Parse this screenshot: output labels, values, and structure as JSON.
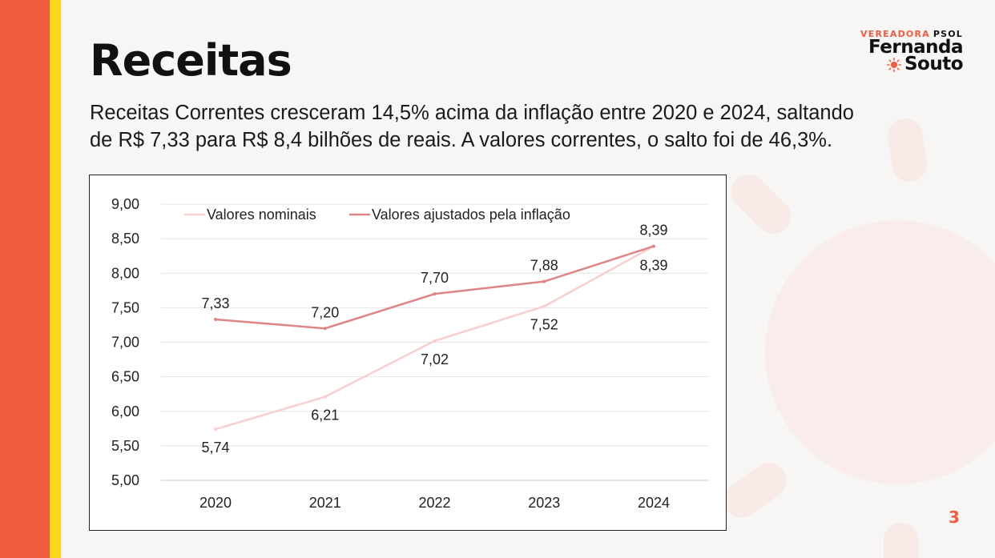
{
  "slide": {
    "title": "Receitas",
    "subtitle_line1": "Receitas Correntes cresceram 14,5% acima da inflação entre 2020 e 2024, saltando",
    "subtitle_line2": "de R$ 7,33 para R$ 8,4 bilhões de reais. A valores correntes, o salto foi de 46,3%.",
    "page_number": "3"
  },
  "logo": {
    "top_left": "VEREADORA",
    "top_right": "PSOL",
    "name_line1": "Fernanda",
    "name_line2": "Souto"
  },
  "colors": {
    "brand_red": "#f25c3e",
    "brand_yellow": "#ffd51c",
    "series_nominal": "#f7cfcf",
    "series_adjusted": "#de8585"
  },
  "chart_data": {
    "type": "line",
    "categories": [
      "2020",
      "2021",
      "2022",
      "2023",
      "2024"
    ],
    "series": [
      {
        "name": "Valores nominais",
        "values": [
          5.74,
          6.21,
          7.02,
          7.52,
          8.39
        ],
        "labels": [
          "5,74",
          "6,21",
          "7,02",
          "7,52",
          "8,39"
        ]
      },
      {
        "name": "Valores ajustados pela inflação",
        "values": [
          7.33,
          7.2,
          7.7,
          7.88,
          8.39
        ],
        "labels": [
          "7,33",
          "7,20",
          "7,70",
          "7,88",
          "8,39"
        ]
      }
    ],
    "ylim": [
      5.0,
      9.0
    ],
    "yticks": [
      "5,00",
      "5,50",
      "6,00",
      "6,50",
      "7,00",
      "7,50",
      "8,00",
      "8,50",
      "9,00"
    ],
    "grid": true,
    "legend": "top-left"
  }
}
